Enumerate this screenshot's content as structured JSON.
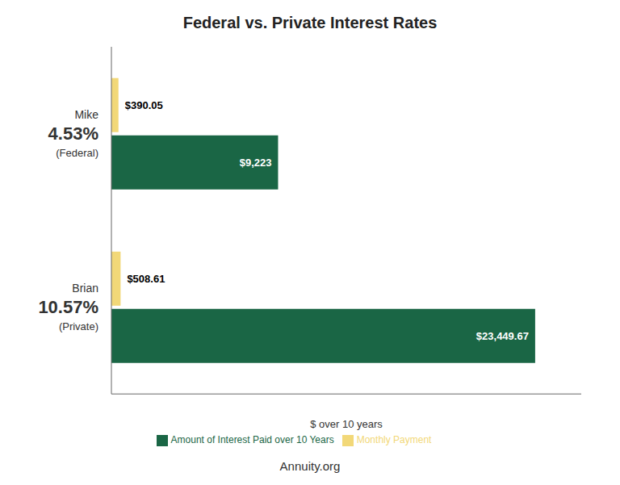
{
  "chart_data": {
    "type": "bar",
    "orientation": "horizontal",
    "title": "Federal vs. Private Interest Rates",
    "xlabel": "$ over 10 years",
    "categories": [
      "Mike\n4.53%\n(Federal)",
      "Brian\n10.57%\n(Private)"
    ],
    "series": [
      {
        "name": "Monthly Payment",
        "color": "#F2D878",
        "values": [
          390.05,
          508.61
        ],
        "value_labels": [
          "$390.05",
          "$508.61"
        ]
      },
      {
        "name": "Amount of Interest Paid over 10 Years",
        "color": "#1A6645",
        "values": [
          9223,
          23449.67
        ],
        "value_labels": [
          "$9,223",
          "$23,449.67"
        ]
      }
    ],
    "xlim": [
      0,
      26000
    ],
    "xticks": [],
    "grid": false,
    "data_labels": true,
    "tick_labels": "y",
    "annotations": [
      "Annuity.org"
    ]
  }
}
